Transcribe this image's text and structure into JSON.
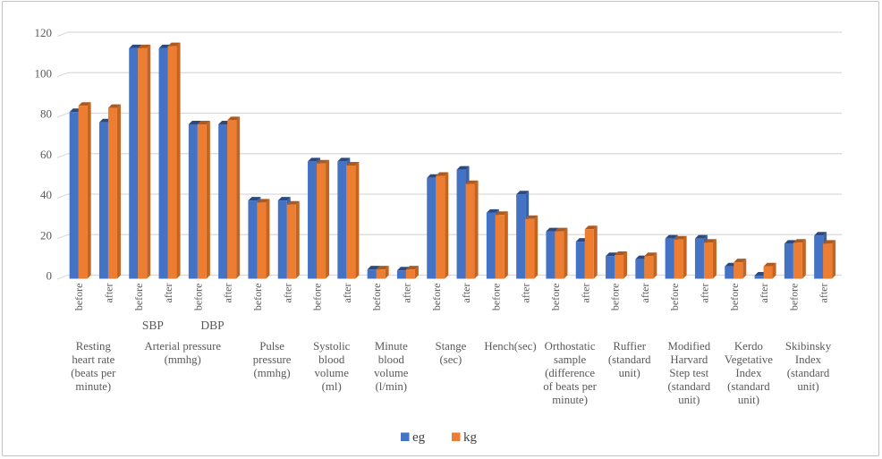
{
  "chart_data": {
    "type": "bar",
    "title": "",
    "style": "3d-clustered-column",
    "ylim": [
      0,
      120
    ],
    "yticks": [
      0,
      20,
      40,
      60,
      80,
      100,
      120
    ],
    "grid": true,
    "legend_position": "bottom",
    "legend": [
      {
        "name": "eg",
        "color": "#4472C4"
      },
      {
        "name": "kg",
        "color": "#ED7D31"
      }
    ],
    "colors": {
      "eg_front": "#4472C4",
      "eg_cap": "#2C4A80",
      "eg_side": "#3A62A8",
      "kg_front": "#ED7D31",
      "kg_cap": "#AE5A1E",
      "kg_side": "#C4641F",
      "gridline": "#D9D9D9",
      "axis_text": "#595959",
      "border": "#C3C3C3",
      "background": "#FFFFFF"
    },
    "categories": [
      {
        "name": "Resting heart rate (beats per minute)",
        "lines": [
          "Resting",
          "heart rate",
          "(beats per",
          "minute)"
        ],
        "slots": [
          {
            "x_label": "before",
            "eg": 81,
            "kg": 84
          },
          {
            "x_label": "after",
            "eg": 76,
            "kg": 83
          }
        ]
      },
      {
        "name": "Arterial pressure (mmhg)",
        "lines": [
          "Arterial pressure",
          "(mmhg)"
        ],
        "sub_labels": [
          "SBP",
          "DBP"
        ],
        "slots": [
          {
            "sub": "SBP",
            "x_label": "before",
            "eg": 112,
            "kg": 112
          },
          {
            "sub": "SBP",
            "x_label": "after",
            "eg": 112,
            "kg": 113
          },
          {
            "sub": "DBP",
            "x_label": "before",
            "eg": 75,
            "kg": 75
          },
          {
            "sub": "DBP",
            "x_label": "after",
            "eg": 75,
            "kg": 77
          }
        ]
      },
      {
        "name": "Pulse pressure (mmhg)",
        "lines": [
          "Pulse",
          "pressure",
          "(mmhg)"
        ],
        "slots": [
          {
            "x_label": "before",
            "eg": 38,
            "kg": 37
          },
          {
            "x_label": "after",
            "eg": 38,
            "kg": 36
          }
        ]
      },
      {
        "name": "Systolic blood volume (ml)",
        "lines": [
          "Systolic",
          "blood",
          "volume",
          "(ml)"
        ],
        "slots": [
          {
            "x_label": "before",
            "eg": 57,
            "kg": 56
          },
          {
            "x_label": "after",
            "eg": 57,
            "kg": 55
          }
        ]
      },
      {
        "name": "Minute blood volume (l/min)",
        "lines": [
          "Minute",
          "blood",
          "volume",
          "(l/min)"
        ],
        "slots": [
          {
            "x_label": "before",
            "eg": 4.5,
            "kg": 4.5
          },
          {
            "x_label": "after",
            "eg": 4,
            "kg": 4.5
          }
        ]
      },
      {
        "name": "Stange (sec)",
        "lines": [
          "Stange",
          "(sec)"
        ],
        "slots": [
          {
            "x_label": "before",
            "eg": 49,
            "kg": 50
          },
          {
            "x_label": "after",
            "eg": 53,
            "kg": 46
          }
        ]
      },
      {
        "name": "Hench(sec)",
        "lines": [
          "Hench(sec)"
        ],
        "slots": [
          {
            "x_label": "before",
            "eg": 32,
            "kg": 31
          },
          {
            "x_label": "after",
            "eg": 41,
            "kg": 29
          }
        ]
      },
      {
        "name": "Orthostatic sample (difference of beats per minute)",
        "lines": [
          "Orthostatic",
          "sample",
          "(difference",
          "of beats per",
          "minute)"
        ],
        "slots": [
          {
            "x_label": "before",
            "eg": 23,
            "kg": 23
          },
          {
            "x_label": "after",
            "eg": 18,
            "kg": 24
          }
        ]
      },
      {
        "name": "Ruffier (standard unit)",
        "lines": [
          "Ruffier",
          "(standard",
          "unit)"
        ],
        "slots": [
          {
            "x_label": "before",
            "eg": 11,
            "kg": 11.5
          },
          {
            "x_label": "after",
            "eg": 9.5,
            "kg": 11
          }
        ]
      },
      {
        "name": "Modified Harvard Step test (standard unit)",
        "lines": [
          "Modified",
          "Harvard",
          "Step test",
          "(standard",
          "unit)"
        ],
        "slots": [
          {
            "x_label": "before",
            "eg": 19.5,
            "kg": 19
          },
          {
            "x_label": "after",
            "eg": 19.5,
            "kg": 17.5
          }
        ]
      },
      {
        "name": "Kerdo Vegetative Index (standard unit)",
        "lines": [
          "Kerdo",
          "Vegetative",
          "Index",
          "(standard",
          "unit)"
        ],
        "slots": [
          {
            "x_label": "before",
            "eg": 6,
            "kg": 8
          },
          {
            "x_label": "after",
            "eg": 1.5,
            "kg": 6
          }
        ]
      },
      {
        "name": "Skibinsky Index (standard unit)",
        "lines": [
          "Skibinsky",
          "Index",
          "(standard",
          "unit)"
        ],
        "slots": [
          {
            "x_label": "before",
            "eg": 17,
            "kg": 17.5
          },
          {
            "x_label": "after",
            "eg": 21,
            "kg": 17
          }
        ]
      }
    ]
  }
}
